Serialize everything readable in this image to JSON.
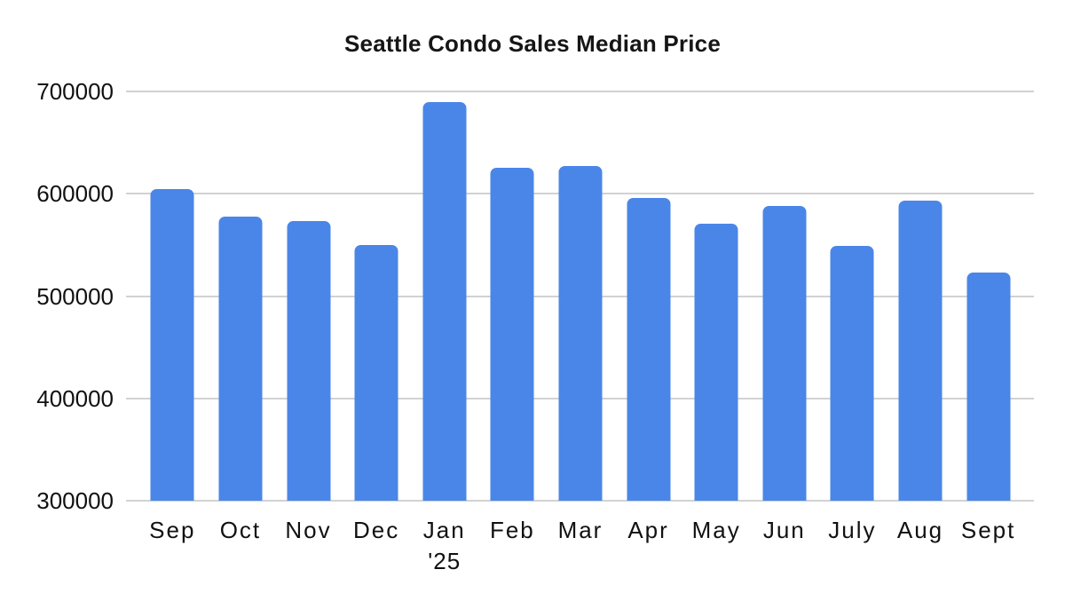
{
  "chart_data": {
    "type": "bar",
    "title": "Seattle Condo Sales Median Price",
    "categories": [
      "Sep",
      "Oct",
      "Nov",
      "Dec",
      "Jan",
      "Feb",
      "Mar",
      "Apr",
      "May",
      "Jun",
      "July",
      "Aug",
      "Sept"
    ],
    "x_sublabels": [
      "",
      "",
      "",
      "",
      "'25",
      "",
      "",
      "",
      "",
      "",
      "",
      "",
      ""
    ],
    "values": [
      605000,
      578000,
      573000,
      550000,
      690000,
      625000,
      627000,
      596000,
      571000,
      588000,
      549000,
      593000,
      523000
    ],
    "xlabel": "",
    "ylabel": "",
    "ylim": [
      300000,
      700000
    ],
    "yticks": [
      300000,
      400000,
      500000,
      600000,
      700000
    ],
    "grid": true,
    "legend": false,
    "colors": {
      "bar": "#4a86e8",
      "gridline": "#d2d2d2",
      "text": "#111111",
      "title_text": "#161616",
      "background": "#ffffff"
    }
  }
}
